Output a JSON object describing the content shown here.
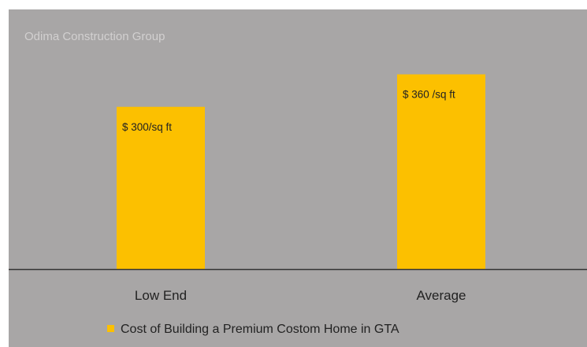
{
  "watermark": "Odima Construction Group",
  "chart_data": {
    "type": "bar",
    "categories": [
      "Low End",
      "Average"
    ],
    "series": [
      {
        "name": "Cost of Building a Premium Costom Home in GTA",
        "values": [
          300,
          360
        ],
        "data_labels": [
          "$ 300/sq ft",
          "$ 360 /sq ft"
        ]
      }
    ],
    "ylim": [
      0,
      400
    ],
    "grid": false,
    "legend_position": "bottom",
    "colors": {
      "bar": "#fcc000",
      "background": "#a8a6a6",
      "axis": "#333333"
    }
  }
}
